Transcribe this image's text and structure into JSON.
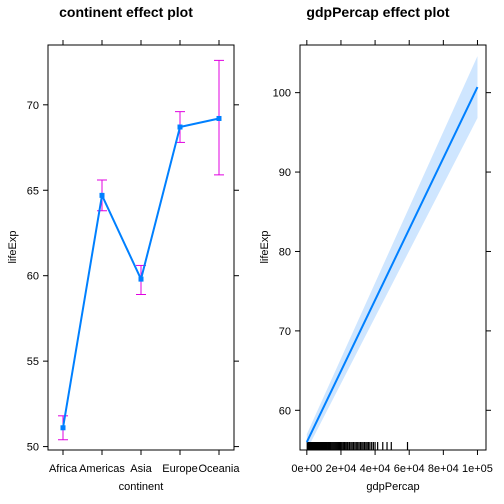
{
  "chart_data": [
    {
      "type": "line",
      "title": "continent effect plot",
      "xlabel": "continent",
      "ylabel": "lifeExp",
      "categories": [
        "Africa",
        "Americas",
        "Asia",
        "Europe",
        "Oceania"
      ],
      "values": [
        51.1,
        64.7,
        59.8,
        68.7,
        69.2
      ],
      "lower": [
        50.4,
        63.8,
        58.9,
        67.8,
        65.9
      ],
      "upper": [
        51.8,
        65.6,
        60.6,
        69.6,
        72.6
      ],
      "ylim": [
        49.8,
        73.5
      ],
      "yticks": [
        50,
        55,
        60,
        65,
        70
      ],
      "line_color": "#0080ff",
      "error_color": "#e000e0"
    },
    {
      "type": "line",
      "title": "gdpPercap effect plot",
      "xlabel": "gdpPercap",
      "ylabel": "lifeExp",
      "xlim": [
        -4000,
        105000
      ],
      "ylim": [
        55,
        106
      ],
      "xticks": [
        0,
        20000,
        40000,
        60000,
        80000,
        100000
      ],
      "xtick_labels": [
        "0e+00",
        "2e+04",
        "4e+04",
        "6e+04",
        "8e+04",
        "1e+05"
      ],
      "yticks": [
        60,
        70,
        80,
        90,
        100
      ],
      "x": [
        0,
        100000
      ],
      "values": [
        56.0,
        100.7
      ],
      "lower": [
        55.0,
        96.8
      ],
      "upper": [
        57.0,
        104.6
      ],
      "rug_x": [
        250,
        400,
        550,
        700,
        850,
        1000,
        1150,
        1300,
        1450,
        1600,
        1750,
        1900,
        2050,
        2200,
        2400,
        2600,
        2800,
        3000,
        3200,
        3400,
        3600,
        3800,
        4000,
        4250,
        4500,
        4750,
        5000,
        5300,
        5600,
        5900,
        6200,
        6500,
        6800,
        7100,
        7400,
        7700,
        8000,
        8400,
        8800,
        9200,
        9600,
        10000,
        10500,
        11000,
        11500,
        12000,
        12500,
        13000,
        13500,
        14000,
        14600,
        15200,
        15800,
        16400,
        17000,
        17600,
        18200,
        18800,
        19400,
        20000,
        20700,
        21400,
        22100,
        22800,
        23500,
        24200,
        25000,
        25800,
        26600,
        27400,
        28200,
        29000,
        29800,
        30600,
        31400,
        32200,
        33000,
        33800,
        34600,
        35400,
        36200,
        37000,
        38000,
        39000,
        40000,
        41500,
        44500,
        47000,
        49500,
        59000
      ],
      "line_color": "#0080ff",
      "band_color": "#cfe6ff"
    }
  ]
}
